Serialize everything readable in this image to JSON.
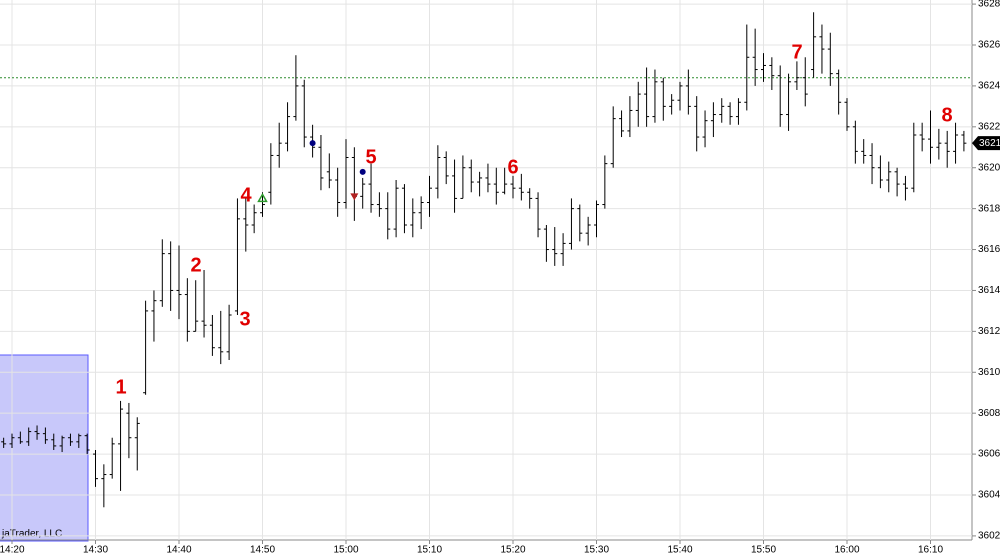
{
  "chart_data": {
    "type": "ohlc",
    "categories": [
      null,
      "14:20",
      null,
      null,
      null,
      null,
      null,
      null,
      null,
      null,
      null,
      "14:30",
      null,
      null,
      null,
      null,
      null,
      null,
      null,
      null,
      null,
      "14:40",
      null,
      null,
      null,
      null,
      null,
      null,
      null,
      null,
      null,
      "14:50",
      null,
      null,
      null,
      null,
      null,
      null,
      null,
      null,
      null,
      "15:00",
      null,
      null,
      null,
      null,
      null,
      null,
      null,
      null,
      null,
      "15:10",
      null,
      null,
      null,
      null,
      null,
      null,
      null,
      null,
      null,
      "15:20",
      null,
      null,
      null,
      null,
      null,
      null,
      null,
      null,
      null,
      "15:30",
      null,
      null,
      null,
      null,
      null,
      null,
      null,
      null,
      null,
      "15:40",
      null,
      null,
      null,
      null,
      null,
      null,
      null,
      null,
      null,
      "15:50",
      null,
      null,
      null,
      null,
      null,
      null,
      null,
      null,
      null,
      "16:00",
      null,
      null,
      null,
      null,
      null,
      null,
      null,
      null,
      null,
      "16:10",
      null,
      null,
      null,
      null
    ],
    "open": [
      3606.6,
      3606.5,
      3606.8,
      3606.6,
      3607.1,
      3607.0,
      3606.7,
      3606.4,
      3606.8,
      3606.6,
      3606.9,
      3606.0,
      3604.8,
      3605.0,
      3606.5,
      3608.0,
      3606.8,
      3609.0,
      3613.0,
      3613.5,
      3615.8,
      3614.0,
      3613.8,
      3612.0,
      3612.5,
      3612.3,
      3611.2,
      3611.0,
      3613.0,
      3617.5,
      3617.2,
      3617.8,
      3618.8,
      3620.6,
      3621.2,
      3622.5,
      3624.0,
      3621.5,
      3621.0,
      3619.8,
      3619.4,
      3618.3,
      3620.5,
      3618.6,
      3619.2,
      3618.2,
      3618.0,
      3617.0,
      3619.0,
      3617.2,
      3617.8,
      3618.3,
      3619.0,
      3620.5,
      3619.6,
      3618.5,
      3620.0,
      3619.3,
      3619.5,
      3619.2,
      3618.8,
      3619.2,
      3619.0,
      3618.8,
      3618.5,
      3617.0,
      3616.0,
      3615.8,
      3616.3,
      3618.0,
      3616.8,
      3617.2,
      3618.2,
      3620.2,
      3622.4,
      3621.8,
      3622.8,
      3623.6,
      3622.5,
      3624.2,
      3623.0,
      3623.3,
      3624.0,
      3623.0,
      3621.5,
      3622.3,
      3622.6,
      3623.0,
      3622.5,
      3623.2,
      3625.4,
      3624.8,
      3625.0,
      3624.5,
      3622.6,
      3624.2,
      3624.4,
      3624.8,
      3626.4,
      3625.8,
      3624.6,
      3623.2,
      3622.0,
      3620.8,
      3620.6,
      3620.0,
      3619.4,
      3619.8,
      3619.2,
      3619.0,
      3621.6,
      3621.4,
      3621.0,
      3621.2,
      3620.8,
      3621.6
    ],
    "high": [
      3606.8,
      3607.0,
      3607.1,
      3607.3,
      3607.4,
      3607.3,
      3607.0,
      3606.9,
      3607.0,
      3607.0,
      3607.0,
      3606.2,
      3605.5,
      3606.8,
      3608.6,
      3608.5,
      3607.8,
      3613.5,
      3614.0,
      3616.5,
      3616.4,
      3616.2,
      3614.6,
      3614.5,
      3615.0,
      3612.8,
      3613.0,
      3613.3,
      3618.5,
      3618.5,
      3618.2,
      3618.8,
      3621.2,
      3622.2,
      3623.2,
      3625.5,
      3624.3,
      3622.1,
      3621.6,
      3620.7,
      3620.0,
      3621.4,
      3621.0,
      3619.5,
      3620.2,
      3618.8,
      3618.8,
      3619.4,
      3619.2,
      3618.5,
      3618.6,
      3619.6,
      3621.1,
      3620.8,
      3620.4,
      3620.6,
      3620.4,
      3619.8,
      3620.2,
      3620.0,
      3620.0,
      3619.6,
      3619.7,
      3619.0,
      3618.8,
      3617.2,
      3617.1,
      3616.8,
      3618.5,
      3618.2,
      3617.6,
      3618.4,
      3620.6,
      3623.0,
      3622.8,
      3623.5,
      3624.2,
      3624.9,
      3624.8,
      3624.4,
      3623.6,
      3624.2,
      3624.8,
      3623.5,
      3622.8,
      3623.2,
      3623.4,
      3623.2,
      3623.4,
      3627.0,
      3626.8,
      3625.6,
      3625.4,
      3625.0,
      3624.6,
      3625.2,
      3625.4,
      3627.6,
      3627.0,
      3626.6,
      3624.8,
      3623.4,
      3622.3,
      3621.4,
      3621.2,
      3620.6,
      3620.3,
      3620.0,
      3619.6,
      3622.2,
      3622.2,
      3622.8,
      3621.9,
      3621.8,
      3622.2,
      3621.8
    ],
    "low": [
      3606.3,
      3606.3,
      3606.5,
      3606.4,
      3606.7,
      3606.5,
      3606.2,
      3606.1,
      3606.4,
      3606.3,
      3606.0,
      3604.4,
      3603.4,
      3604.8,
      3604.2,
      3605.8,
      3605.2,
      3608.9,
      3611.5,
      3613.2,
      3613.0,
      3612.6,
      3611.5,
      3612.0,
      3611.7,
      3610.8,
      3610.4,
      3610.6,
      3612.8,
      3615.9,
      3616.8,
      3617.6,
      3618.2,
      3620.0,
      3620.8,
      3622.3,
      3621.0,
      3620.5,
      3618.9,
      3619.0,
      3617.6,
      3618.0,
      3617.4,
      3618.0,
      3617.8,
      3617.6,
      3616.5,
      3616.6,
      3616.8,
      3616.6,
      3617.0,
      3617.6,
      3618.5,
      3619.2,
      3617.8,
      3618.5,
      3618.8,
      3618.6,
      3618.8,
      3618.2,
      3618.7,
      3618.5,
      3618.4,
      3618.0,
      3616.6,
      3615.4,
      3615.2,
      3615.2,
      3616.0,
      3616.4,
      3616.2,
      3616.6,
      3618.0,
      3620.0,
      3621.5,
      3621.5,
      3622.0,
      3622.0,
      3622.2,
      3622.3,
      3622.6,
      3622.8,
      3622.6,
      3620.8,
      3621.0,
      3621.5,
      3622.2,
      3622.1,
      3622.1,
      3622.8,
      3624.0,
      3624.2,
      3623.8,
      3622.0,
      3621.8,
      3623.8,
      3623.0,
      3624.4,
      3624.6,
      3624.0,
      3622.6,
      3621.8,
      3620.2,
      3620.2,
      3619.2,
      3619.0,
      3618.8,
      3618.6,
      3618.4,
      3618.8,
      3620.8,
      3620.2,
      3620.4,
      3620.0,
      3620.2,
      3620.8
    ],
    "close": [
      3606.5,
      3606.8,
      3606.6,
      3607.1,
      3607.0,
      3606.7,
      3606.4,
      3606.8,
      3606.6,
      3606.9,
      3606.2,
      3604.8,
      3605.0,
      3606.5,
      3608.2,
      3606.8,
      3607.5,
      3613.0,
      3613.5,
      3615.8,
      3614.0,
      3613.8,
      3612.0,
      3612.5,
      3612.3,
      3611.2,
      3611.0,
      3612.8,
      3617.5,
      3617.2,
      3617.8,
      3618.2,
      3620.6,
      3621.2,
      3622.5,
      3624.0,
      3621.5,
      3621.0,
      3619.5,
      3619.4,
      3618.3,
      3620.5,
      3618.6,
      3619.2,
      3618.2,
      3618.0,
      3617.0,
      3619.0,
      3617.2,
      3617.8,
      3618.3,
      3619.0,
      3620.5,
      3619.6,
      3618.5,
      3620.0,
      3619.3,
      3619.5,
      3619.2,
      3618.8,
      3619.2,
      3619.0,
      3618.8,
      3618.5,
      3617.0,
      3616.0,
      3615.8,
      3616.3,
      3618.0,
      3616.8,
      3617.2,
      3618.2,
      3620.2,
      3622.4,
      3621.8,
      3622.8,
      3623.6,
      3622.5,
      3624.2,
      3623.0,
      3623.3,
      3624.0,
      3623.0,
      3621.5,
      3622.3,
      3622.6,
      3623.0,
      3622.5,
      3623.2,
      3625.4,
      3624.8,
      3625.0,
      3624.5,
      3622.6,
      3624.2,
      3624.4,
      3623.6,
      3626.4,
      3625.8,
      3624.6,
      3623.2,
      3622.0,
      3620.8,
      3620.6,
      3620.0,
      3619.4,
      3619.8,
      3619.2,
      3619.0,
      3621.6,
      3621.4,
      3621.0,
      3621.2,
      3620.8,
      3621.6,
      3621.2
    ],
    "color": "#000000",
    "ylim": [
      3601.8,
      3628.2
    ],
    "yticks": [
      {
        "value": 3602,
        "label": "3602.00"
      },
      {
        "value": 3604,
        "label": "3604.00"
      },
      {
        "value": 3606,
        "label": "3606.00"
      },
      {
        "value": 3608,
        "label": "3608.00"
      },
      {
        "value": 3610,
        "label": "3610.00"
      },
      {
        "value": 3612,
        "label": "3612.00"
      },
      {
        "value": 3614,
        "label": "3614.00"
      },
      {
        "value": 3616,
        "label": "3616.00"
      },
      {
        "value": 3618,
        "label": "3618.00"
      },
      {
        "value": 3620,
        "label": "3620.00"
      },
      {
        "value": 3622,
        "label": "3622.00"
      },
      {
        "value": 3624,
        "label": "3624.00"
      },
      {
        "value": 3626,
        "label": "3626.00"
      },
      {
        "value": 3628,
        "label": "3628.00"
      }
    ],
    "grid": true,
    "reference_line": {
      "value": 3624.4,
      "color": "#2e8b2e"
    },
    "last_price": {
      "value": 3621.2,
      "label": "3621"
    },
    "markers": [
      {
        "bar": 31,
        "value": 3618.5,
        "shape": "triangle-up",
        "color": "#2e9b2e"
      },
      {
        "bar": 37,
        "value": 3621.2,
        "shape": "dot",
        "color": "#000080"
      },
      {
        "bar": 42,
        "value": 3618.6,
        "shape": "triangle-down",
        "color": "#b22222"
      },
      {
        "bar": 43,
        "value": 3619.8,
        "shape": "dot",
        "color": "#000080"
      }
    ],
    "annotations": [
      "1",
      "2",
      "3",
      "4",
      "5",
      "6",
      "7",
      "8"
    ],
    "watermark": "jaTrader, LLC"
  }
}
